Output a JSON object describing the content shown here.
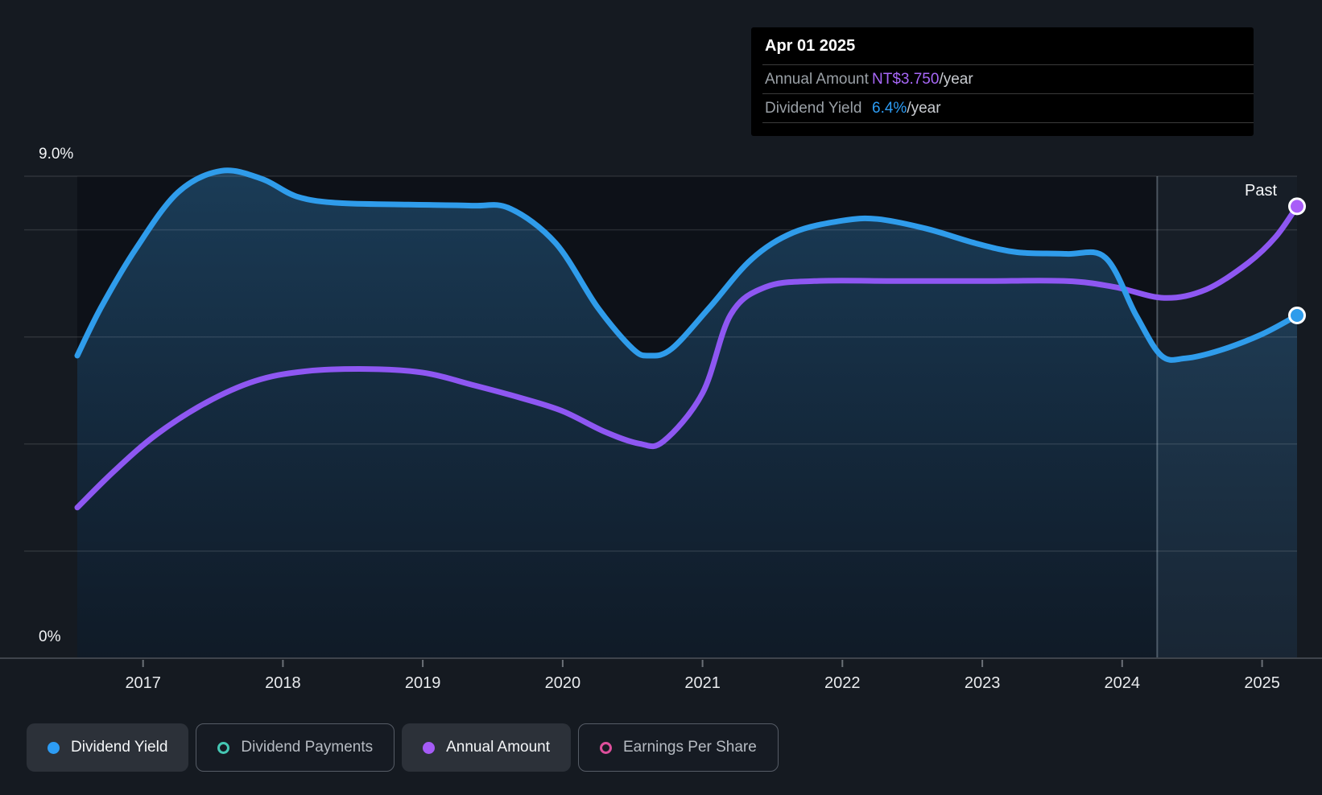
{
  "tooltip": {
    "date": "Apr 01 2025",
    "rows": [
      {
        "label": "Annual Amount",
        "value": "NT$3.750",
        "suffix": "/year",
        "color": "#a767f7"
      },
      {
        "label": "Dividend Yield",
        "value": "6.4%",
        "suffix": "/year",
        "color": "#2d9cf4"
      }
    ]
  },
  "chart_data": {
    "type": "area",
    "title": "Dividend history: dividend yield and annual amount over time",
    "x_axis": {
      "range": [
        2016.53,
        2025.25
      ],
      "ticks": [
        2017,
        2018,
        2019,
        2020,
        2021,
        2022,
        2023,
        2024,
        2025
      ]
    },
    "yield_axis": {
      "range": [
        0,
        9
      ],
      "top_label": "9.0%",
      "bottom_label": "0%",
      "grid_values": [
        9,
        8,
        6,
        4,
        2
      ]
    },
    "amount_axis": {
      "range": [
        0,
        4
      ],
      "visible": false,
      "unit": "NT$"
    },
    "today_marker": {
      "x": 2024.25,
      "region_label": "Past",
      "region_end": 2025.25
    },
    "series": [
      {
        "name": "Dividend Yield",
        "axis": "yield",
        "unit": "%",
        "color": "#2f9ceb",
        "area": true,
        "end_marker": true,
        "points": [
          [
            2016.53,
            5.65
          ],
          [
            2016.7,
            6.55
          ],
          [
            2016.95,
            7.65
          ],
          [
            2017.25,
            8.7
          ],
          [
            2017.56,
            9.1
          ],
          [
            2017.85,
            8.95
          ],
          [
            2018.1,
            8.62
          ],
          [
            2018.4,
            8.5
          ],
          [
            2018.9,
            8.47
          ],
          [
            2019.35,
            8.45
          ],
          [
            2019.62,
            8.4
          ],
          [
            2019.95,
            7.75
          ],
          [
            2020.25,
            6.55
          ],
          [
            2020.5,
            5.78
          ],
          [
            2020.62,
            5.65
          ],
          [
            2020.78,
            5.78
          ],
          [
            2021.05,
            6.55
          ],
          [
            2021.35,
            7.45
          ],
          [
            2021.65,
            7.95
          ],
          [
            2022.0,
            8.17
          ],
          [
            2022.25,
            8.2
          ],
          [
            2022.6,
            8.02
          ],
          [
            2022.95,
            7.75
          ],
          [
            2023.25,
            7.58
          ],
          [
            2023.6,
            7.55
          ],
          [
            2023.88,
            7.48
          ],
          [
            2024.1,
            6.4
          ],
          [
            2024.28,
            5.65
          ],
          [
            2024.45,
            5.6
          ],
          [
            2024.7,
            5.75
          ],
          [
            2025.0,
            6.05
          ],
          [
            2025.25,
            6.4
          ]
        ]
      },
      {
        "name": "Annual Amount",
        "axis": "amount",
        "unit": "NT$/year",
        "color": "#8e57f2",
        "area": false,
        "end_marker": true,
        "points": [
          [
            2016.53,
            1.25
          ],
          [
            2016.8,
            1.56
          ],
          [
            2017.1,
            1.86
          ],
          [
            2017.45,
            2.12
          ],
          [
            2017.8,
            2.3
          ],
          [
            2018.15,
            2.38
          ],
          [
            2018.6,
            2.4
          ],
          [
            2019.0,
            2.37
          ],
          [
            2019.35,
            2.27
          ],
          [
            2019.7,
            2.16
          ],
          [
            2020.0,
            2.05
          ],
          [
            2020.3,
            1.88
          ],
          [
            2020.55,
            1.78
          ],
          [
            2020.72,
            1.8
          ],
          [
            2021.0,
            2.2
          ],
          [
            2021.2,
            2.85
          ],
          [
            2021.45,
            3.08
          ],
          [
            2021.8,
            3.13
          ],
          [
            2022.4,
            3.13
          ],
          [
            2023.0,
            3.13
          ],
          [
            2023.6,
            3.13
          ],
          [
            2023.95,
            3.08
          ],
          [
            2024.3,
            2.99
          ],
          [
            2024.6,
            3.06
          ],
          [
            2024.9,
            3.28
          ],
          [
            2025.1,
            3.5
          ],
          [
            2025.25,
            3.75
          ]
        ]
      }
    ],
    "legend": [
      {
        "label": "Dividend Yield",
        "color": "#2d9cf4",
        "style": "filled",
        "active": true
      },
      {
        "label": "Dividend Payments",
        "color": "#45c7b3",
        "style": "ring",
        "active": false
      },
      {
        "label": "Annual Amount",
        "color": "#a55bf6",
        "style": "filled",
        "active": true
      },
      {
        "label": "Earnings Per Share",
        "color": "#dd4f9b",
        "style": "ring",
        "active": false
      }
    ],
    "colors": {
      "page_bg": "#151a21",
      "plot_bg": "#0d1118",
      "past_region": "rgba(150,185,220,0.08)",
      "grid": "rgba(255,255,255,0.11)",
      "axis": "#3f444c",
      "tick_label": "#e9ebee",
      "today_line": "rgba(210,225,240,0.30)",
      "area_top": "rgba(48,130,190,0.38)",
      "area_bottom": "rgba(40,110,170,0.10)"
    }
  }
}
